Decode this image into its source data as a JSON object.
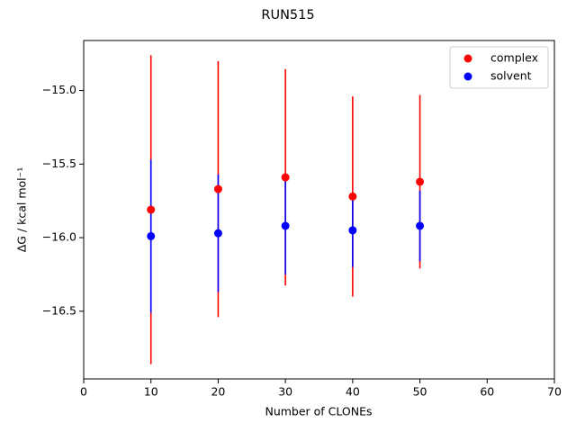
{
  "chart_data": {
    "type": "errorbar-scatter",
    "title": "RUN515",
    "x_label": "Number of CLONEs",
    "y_label": "ΔG / kcal mol⁻¹",
    "x": [
      10,
      20,
      30,
      40,
      50
    ],
    "series": [
      {
        "name": "complex",
        "color": "#ff0000",
        "values": [
          -15.81,
          -15.67,
          -15.59,
          -15.72,
          -15.62
        ],
        "errors": [
          1.05,
          0.87,
          0.735,
          0.68,
          0.59
        ]
      },
      {
        "name": "solvent",
        "color": "#0000ff",
        "values": [
          -15.99,
          -15.97,
          -15.92,
          -15.95,
          -15.92
        ],
        "errors": [
          0.52,
          0.4,
          0.33,
          0.25,
          0.24
        ]
      }
    ],
    "xlim": [
      0,
      70
    ],
    "xticks": [
      0,
      10,
      20,
      30,
      40,
      50,
      60,
      70
    ],
    "ylim": [
      -16.96,
      -14.66
    ],
    "yticks": [
      {
        "value": -16.5,
        "label": "−16.5"
      },
      {
        "value": -16.0,
        "label": "−16.0"
      },
      {
        "value": -15.5,
        "label": "−15.5"
      },
      {
        "value": -15.0,
        "label": "−15.0"
      }
    ],
    "legend": "upper right",
    "grid": false
  }
}
